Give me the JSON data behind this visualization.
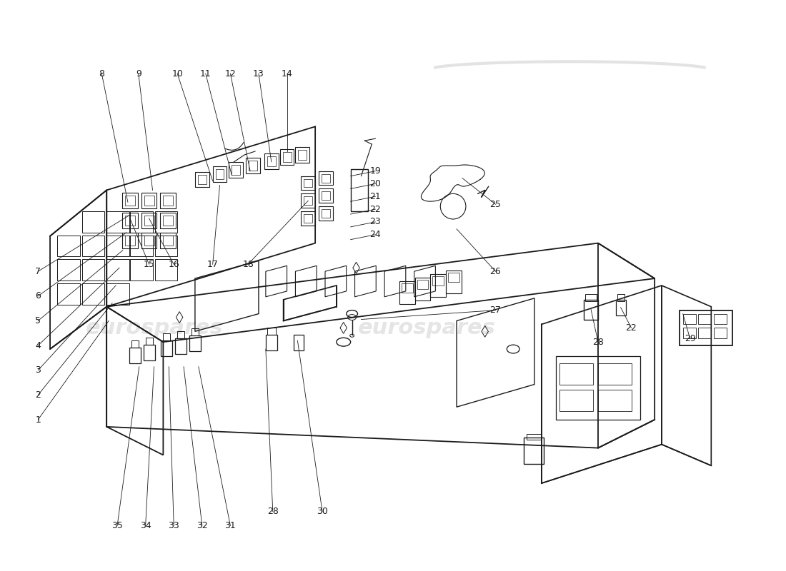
{
  "background_color": "#ffffff",
  "line_color": "#1a1a1a",
  "watermark_color": "#cccccc",
  "watermark_text": "eurospares",
  "figure_width": 11.0,
  "figure_height": 8.0,
  "dpi": 100
}
